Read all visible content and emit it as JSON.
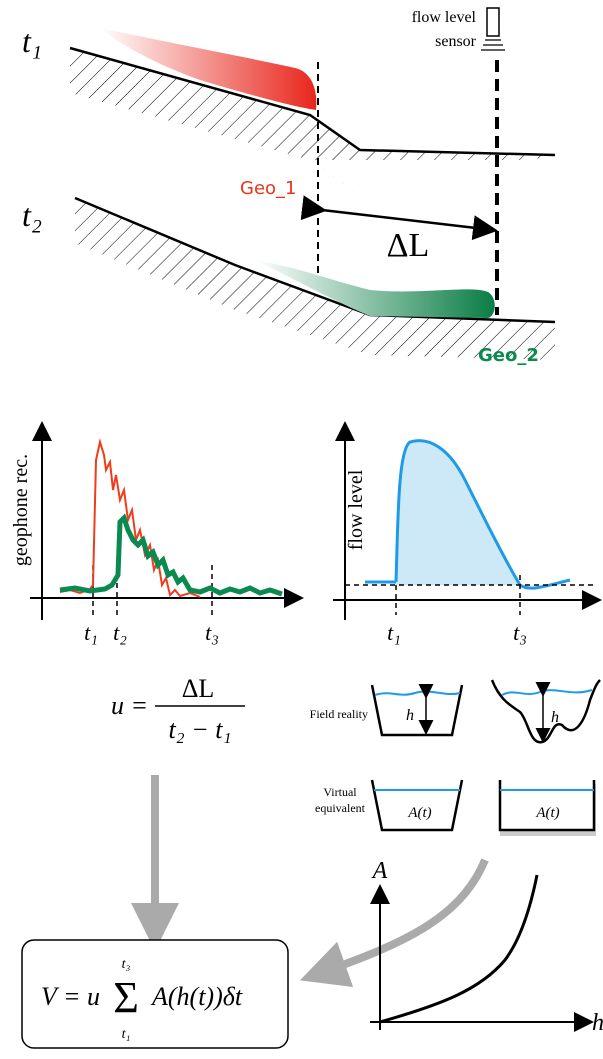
{
  "top_panel": {
    "time_labels": [
      "t₁",
      "t₂"
    ],
    "sensor_label": [
      "flow level",
      "sensor"
    ],
    "geophone_labels": [
      "Geo_1",
      "Geo_2"
    ],
    "distance_label": "ΔL"
  },
  "geophone_plot": {
    "y_label": "geophone rec.",
    "x_ticks": [
      "t₁",
      "t₂",
      "t₃"
    ]
  },
  "flow_plot": {
    "y_label": "flow level",
    "x_ticks": [
      "t₁",
      "t₃"
    ]
  },
  "velocity_formula": {
    "lhs": "u =",
    "numerator": "ΔL",
    "denominator": "t₂ − t₁"
  },
  "cross_sections": {
    "field_reality_label": "Field reality",
    "field_depth_labels": [
      "h",
      "h"
    ],
    "virtual_label": [
      "Virtual",
      "equivalent"
    ],
    "virtual_area_labels": [
      "A(t)",
      "A(t)"
    ]
  },
  "area_plot": {
    "y_label": "A",
    "x_label": "h"
  },
  "volume_formula": {
    "lhs": "V = u",
    "sum": "Σ",
    "upper": "t₃",
    "lower": "t₁",
    "term": "A(h(t))δt"
  }
}
